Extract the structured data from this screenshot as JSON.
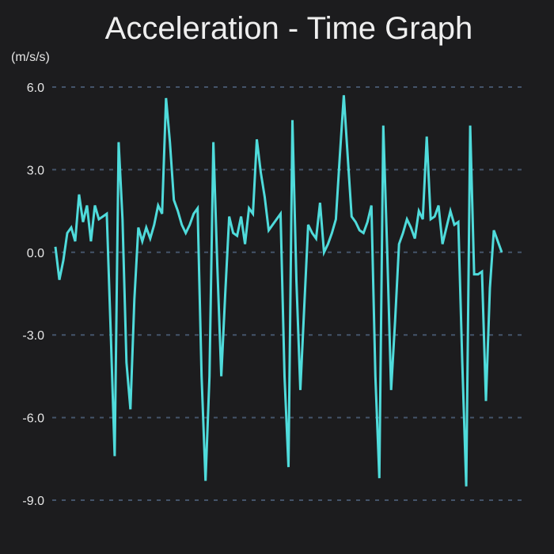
{
  "chart_data": {
    "type": "line",
    "title": "Acceleration - Time Graph",
    "ylabel": "(m/s/s)",
    "xlabel": "",
    "ylim": [
      -9,
      6
    ],
    "yticks": [
      {
        "value": 6,
        "label": "6.0"
      },
      {
        "value": 3,
        "label": "3.0"
      },
      {
        "value": 0,
        "label": "0.0"
      },
      {
        "value": -3,
        "label": "-3.0"
      },
      {
        "value": -6,
        "label": "-6.0"
      },
      {
        "value": -9,
        "label": "-9.0"
      }
    ],
    "grid": true,
    "colors": {
      "line": "#4fdbdb",
      "grid": "#44546a",
      "background": "#1c1c1e"
    },
    "series": [
      {
        "values": [
          0.2,
          -1.0,
          -0.3,
          0.7,
          0.9,
          0.4,
          2.1,
          1.1,
          1.7,
          0.4,
          1.7,
          1.2,
          1.3,
          1.4,
          -2.9,
          -7.4,
          4.0,
          1.2,
          -4.0,
          -5.7,
          -1.7,
          0.9,
          0.4,
          0.9,
          0.5,
          1.0,
          1.7,
          1.4,
          5.6,
          4.0,
          1.9,
          1.5,
          1.0,
          0.7,
          1.0,
          1.4,
          1.6,
          -4.5,
          -8.3,
          -4.5,
          4.0,
          -0.5,
          -4.5,
          -1.5,
          1.3,
          0.7,
          0.6,
          1.3,
          0.3,
          1.6,
          1.4,
          4.1,
          2.9,
          2.0,
          0.8,
          1.0,
          1.2,
          1.4,
          -4.5,
          -7.8,
          4.8,
          -1.0,
          -5.0,
          -2.0,
          1.0,
          0.7,
          0.5,
          1.8,
          0.0,
          0.3,
          0.7,
          1.2,
          3.5,
          5.7,
          3.5,
          1.3,
          1.1,
          0.8,
          0.7,
          1.1,
          1.7,
          -4.5,
          -8.2,
          4.6,
          0.0,
          -5.0,
          -2.5,
          0.3,
          0.7,
          1.2,
          0.9,
          0.5,
          1.5,
          1.2,
          4.2,
          1.2,
          1.3,
          1.7,
          0.3,
          0.9,
          1.5,
          1.0,
          1.1,
          -4.0,
          -8.5,
          4.6,
          -0.8,
          -0.8,
          -0.7,
          -5.4,
          -1.3,
          0.8,
          0.4,
          0.0
        ]
      }
    ]
  }
}
